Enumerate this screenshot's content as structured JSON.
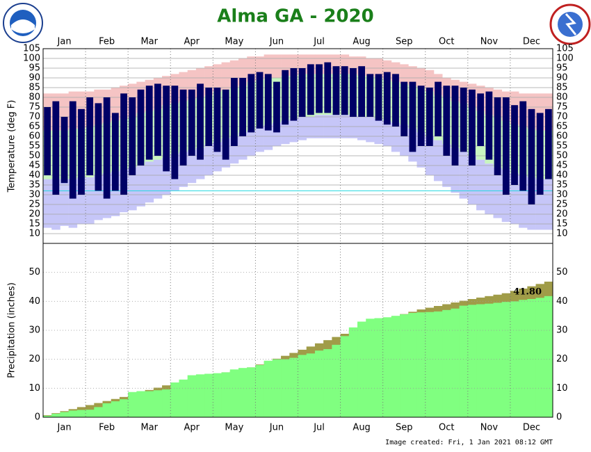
{
  "chart_data": [
    {
      "type": "temperature-range",
      "title": "Alma GA - 2020",
      "ylabel": "Temperature (deg F)",
      "categories": [
        null,
        null,
        "Jan",
        null,
        null,
        null,
        null,
        "Feb",
        null,
        null,
        null,
        null,
        "Mar",
        null,
        null,
        null,
        null,
        "Apr",
        null,
        null,
        null,
        null,
        "May",
        null,
        null,
        null,
        null,
        "Jun",
        null,
        null,
        null,
        null,
        "Jul",
        null,
        null,
        null,
        null,
        "Aug",
        null,
        null,
        null,
        null,
        "Sep",
        null,
        null,
        null,
        null,
        "Oct",
        null,
        null,
        null,
        null,
        "Nov",
        null,
        null,
        null,
        null,
        "Dec",
        null,
        null
      ],
      "ylim": [
        5,
        105
      ],
      "yticks": [
        10,
        15,
        20,
        25,
        30,
        35,
        40,
        45,
        50,
        55,
        60,
        65,
        70,
        75,
        80,
        85,
        90,
        95,
        100,
        105
      ],
      "freeze_line": 32,
      "colors": {
        "record_high": "#f5c4c4",
        "normal": "#c8f5c0",
        "record_low": "#c6c6f8",
        "observed": "#000066",
        "freeze_line": "#20d8e0"
      },
      "record_high": [
        82,
        82,
        82,
        83,
        83,
        83,
        84,
        84,
        85,
        86,
        87,
        88,
        89,
        90,
        91,
        92,
        93,
        94,
        95,
        96,
        97,
        98,
        99,
        100,
        101,
        101,
        102,
        102,
        102,
        102,
        102,
        102,
        102,
        102,
        102,
        102,
        101,
        101,
        100,
        100,
        99,
        98,
        97,
        96,
        95,
        94,
        92,
        90,
        89,
        88,
        87,
        86,
        85,
        84,
        83,
        83,
        82,
        82,
        82,
        82
      ],
      "normal_high": [
        63,
        63,
        63,
        64,
        64,
        65,
        66,
        67,
        68,
        69,
        70,
        72,
        73,
        74,
        76,
        77,
        78,
        79,
        80,
        81,
        83,
        84,
        85,
        86,
        88,
        89,
        90,
        90,
        91,
        91,
        92,
        92,
        92,
        92,
        92,
        92,
        92,
        91,
        91,
        90,
        89,
        88,
        87,
        86,
        85,
        83,
        81,
        80,
        78,
        77,
        75,
        73,
        71,
        70,
        68,
        66,
        65,
        64,
        63,
        63
      ],
      "normal_low": [
        38,
        38,
        38,
        38,
        39,
        39,
        40,
        41,
        42,
        43,
        44,
        45,
        47,
        48,
        49,
        51,
        52,
        53,
        54,
        56,
        57,
        59,
        60,
        62,
        63,
        65,
        66,
        67,
        68,
        69,
        70,
        70,
        71,
        71,
        71,
        71,
        71,
        70,
        70,
        69,
        68,
        67,
        66,
        64,
        62,
        60,
        58,
        56,
        54,
        52,
        50,
        48,
        46,
        44,
        43,
        41,
        40,
        39,
        38,
        38
      ],
      "record_low": [
        13,
        12,
        14,
        13,
        15,
        15,
        17,
        18,
        19,
        21,
        22,
        24,
        26,
        28,
        30,
        32,
        34,
        36,
        38,
        40,
        42,
        44,
        46,
        48,
        50,
        52,
        53,
        55,
        56,
        57,
        58,
        59,
        59,
        59,
        59,
        59,
        59,
        58,
        57,
        56,
        55,
        52,
        50,
        47,
        44,
        40,
        37,
        34,
        31,
        28,
        25,
        22,
        20,
        18,
        16,
        15,
        13,
        12,
        12,
        12
      ],
      "observed_high": [
        75,
        78,
        70,
        78,
        74,
        80,
        77,
        80,
        72,
        82,
        80,
        84,
        86,
        87,
        86,
        86,
        84,
        84,
        87,
        85,
        85,
        84,
        90,
        90,
        92,
        93,
        92,
        88,
        94,
        95,
        95,
        97,
        97,
        98,
        96,
        96,
        95,
        96,
        92,
        92,
        93,
        92,
        88,
        88,
        86,
        85,
        88,
        86,
        86,
        85,
        84,
        82,
        83,
        80,
        80,
        76,
        78,
        74,
        72,
        74
      ],
      "observed_low": [
        40,
        30,
        36,
        28,
        30,
        40,
        32,
        28,
        32,
        30,
        40,
        45,
        48,
        50,
        42,
        38,
        45,
        50,
        48,
        55,
        52,
        48,
        55,
        60,
        62,
        64,
        63,
        62,
        66,
        68,
        70,
        71,
        72,
        72,
        71,
        71,
        70,
        70,
        70,
        68,
        66,
        65,
        60,
        52,
        55,
        55,
        60,
        50,
        45,
        52,
        45,
        55,
        48,
        40,
        30,
        35,
        32,
        25,
        30,
        38
      ]
    },
    {
      "type": "precipitation",
      "ylabel": "Precipitation (inches)",
      "note": "Image created: Fri, 1 Jan 2021 08:12 GMT",
      "categories": [
        null,
        null,
        "Jan",
        null,
        null,
        null,
        null,
        "Feb",
        null,
        null,
        null,
        null,
        "Mar",
        null,
        null,
        null,
        null,
        "Apr",
        null,
        null,
        null,
        null,
        "May",
        null,
        null,
        null,
        null,
        "Jun",
        null,
        null,
        null,
        null,
        "Jul",
        null,
        null,
        null,
        null,
        "Aug",
        null,
        null,
        null,
        null,
        "Sep",
        null,
        null,
        null,
        null,
        "Oct",
        null,
        null,
        null,
        null,
        "Nov",
        null,
        null,
        null,
        null,
        "Dec",
        null,
        null
      ],
      "ylim": [
        0,
        60
      ],
      "yticks": [
        0,
        10,
        20,
        30,
        40,
        50
      ],
      "normal": {
        "color": "#a09c48",
        "values": [
          0.7,
          1.4,
          2.1,
          2.8,
          3.5,
          4.2,
          4.9,
          5.6,
          6.3,
          7.0,
          7.8,
          8.6,
          9.4,
          10.2,
          11.0,
          11.7,
          12.4,
          13.1,
          13.8,
          14.5,
          15.0,
          15.5,
          16.0,
          16.6,
          17.2,
          18.2,
          19.2,
          20.2,
          21.2,
          22.2,
          23.3,
          24.4,
          25.5,
          26.6,
          27.7,
          28.8,
          29.9,
          31.0,
          32.1,
          33.2,
          34.0,
          34.8,
          35.6,
          36.4,
          37.2,
          37.8,
          38.4,
          39.0,
          39.6,
          40.2,
          40.8,
          41.3,
          41.8,
          42.3,
          42.8,
          43.6,
          44.4,
          45.2,
          46.0,
          46.8
        ]
      },
      "observed": {
        "color": "#80ff80",
        "values": [
          0.5,
          1.2,
          1.8,
          2.3,
          2.5,
          2.6,
          3.5,
          4.8,
          5.5,
          6.2,
          8.7,
          9.0,
          9.0,
          9.3,
          9.6,
          12.0,
          13.0,
          14.5,
          14.8,
          15.0,
          15.2,
          15.5,
          16.5,
          17.0,
          17.2,
          18.0,
          19.5,
          20.0,
          20.0,
          20.5,
          21.5,
          22.0,
          23.0,
          23.5,
          25.0,
          28.0,
          31.0,
          33.0,
          34.0,
          34.2,
          34.5,
          35.0,
          35.5,
          36.0,
          36.2,
          36.3,
          36.5,
          37.0,
          37.5,
          38.5,
          38.8,
          39.0,
          39.2,
          39.5,
          39.8,
          40.0,
          40.5,
          40.8,
          41.2,
          41.8
        ],
        "value_labels": [
          null,
          null,
          null,
          null,
          null,
          null,
          null,
          null,
          null,
          null,
          null,
          null,
          null,
          null,
          null,
          null,
          null,
          null,
          null,
          null,
          null,
          null,
          null,
          null,
          null,
          null,
          null,
          null,
          null,
          null,
          null,
          null,
          null,
          null,
          null,
          null,
          null,
          null,
          null,
          null,
          null,
          null,
          null,
          null,
          null,
          null,
          null,
          null,
          null,
          null,
          null,
          null,
          null,
          null,
          null,
          null,
          null,
          null,
          null,
          "41.80"
        ]
      }
    }
  ]
}
